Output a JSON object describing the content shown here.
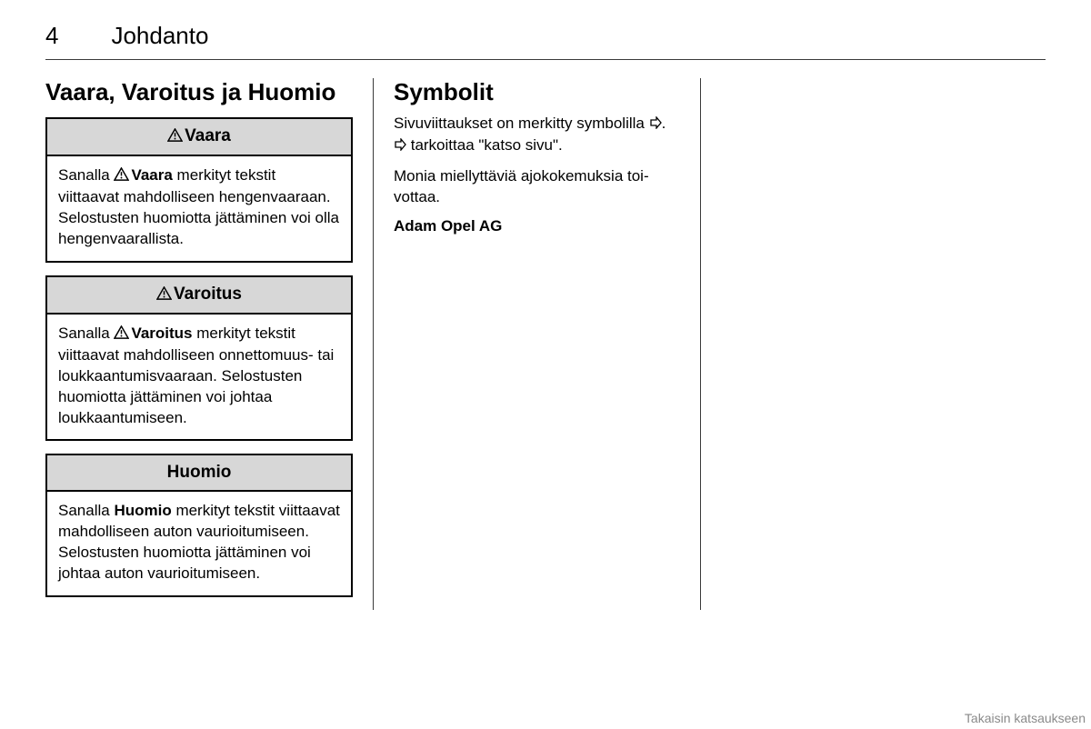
{
  "header": {
    "page_number": "4",
    "chapter": "Johdanto"
  },
  "col1": {
    "heading": "Vaara, Varoitus ja Huomio",
    "boxes": [
      {
        "title": "Vaara",
        "has_icon": true,
        "body_pre": "Sanalla ",
        "body_bold": "Vaara",
        "body_post": " merkityt tekstit viittaavat mahdolliseen hengen­vaaraan. Selostusten huomiotta jättäminen voi olla hengenvaaral­lista.",
        "bold_has_icon": true
      },
      {
        "title": "Varoitus",
        "has_icon": true,
        "body_pre": "Sanalla ",
        "body_bold": "Varoitus",
        "body_post": " merkityt tekstit viittaavat mahdolliseen onnetto­muus- tai loukkaantumisvaaraan. Selostusten huomiotta jättäminen voi johtaa loukkaantumiseen.",
        "bold_has_icon": true
      },
      {
        "title": "Huomio",
        "has_icon": false,
        "body_pre": "Sanalla ",
        "body_bold": "Huomio",
        "body_post": " merkityt tekstit viittaavat mahdolliseen auton vau­rioitumiseen. Selostusten huo­miotta jättäminen voi johtaa auton vaurioitumiseen.",
        "bold_has_icon": false
      }
    ]
  },
  "col2": {
    "heading": "Symbolit",
    "para1_a": "Sivuviittaukset on merkitty symbo­lilla ",
    "para1_b": ". ",
    "para1_c": " tarkoittaa \"katso sivu\".",
    "para2": "Monia miellyttäviä ajokokemuksia toi­vottaa.",
    "signoff": "Adam Opel AG"
  },
  "footer": {
    "link": "Takaisin katsaukseen"
  },
  "colors": {
    "box_header_bg": "#d7d7d7",
    "border": "#000000",
    "rule": "#3a3a3a",
    "footer": "#8a8a8a",
    "text": "#000000",
    "bg": "#ffffff"
  }
}
